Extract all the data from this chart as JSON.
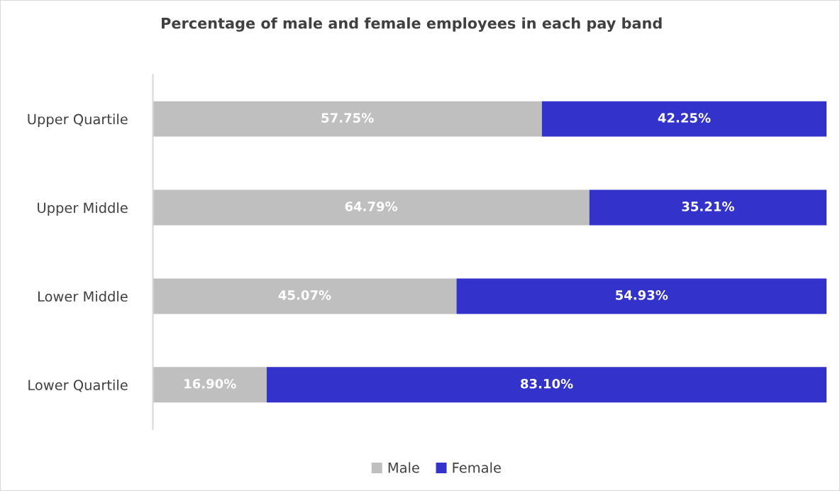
{
  "chart_data": {
    "type": "bar",
    "orientation": "horizontal",
    "stacked": true,
    "title": "Percentage of male and female employees in each pay band",
    "categories": [
      "Upper Quartile",
      "Upper Middle",
      "Lower Middle",
      "Lower Quartile"
    ],
    "series": [
      {
        "name": "Male",
        "color": "#bfbfbf",
        "values": [
          57.75,
          64.79,
          45.07,
          16.9
        ],
        "value_labels": [
          "57.75%",
          "64.79%",
          "45.07%",
          "16.90%"
        ]
      },
      {
        "name": "Female",
        "color": "#3333cc",
        "values": [
          42.25,
          35.21,
          54.93,
          83.1
        ],
        "value_labels": [
          "42.25%",
          "35.21%",
          "54.93%",
          "83.10%"
        ]
      }
    ],
    "xlim": [
      0,
      100
    ],
    "tick_labels": "y",
    "grid": false,
    "legend": "bottom"
  }
}
